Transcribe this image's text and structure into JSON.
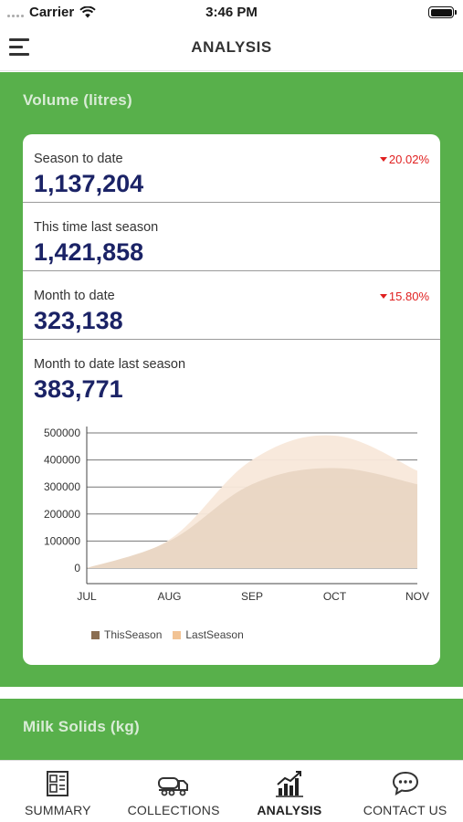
{
  "status_bar": {
    "carrier": "Carrier",
    "time": "3:46 PM"
  },
  "header": {
    "title": "ANALYSIS"
  },
  "volume": {
    "title": "Volume (litres)",
    "stats": [
      {
        "label": "Season to date",
        "value": "1,137,204",
        "change": "20.02%"
      },
      {
        "label": "This time last season",
        "value": "1,421,858",
        "change": ""
      },
      {
        "label": "Month to date",
        "value": "323,138",
        "change": "15.80%"
      },
      {
        "label": "Month to date last season",
        "value": "383,771",
        "change": ""
      }
    ]
  },
  "chart_data": {
    "type": "area",
    "categories": [
      "JUL",
      "AUG",
      "SEP",
      "OCT",
      "NOV"
    ],
    "x": [
      0,
      1,
      2,
      3,
      4
    ],
    "y_ticks": [
      0,
      100000,
      200000,
      300000,
      400000,
      500000
    ],
    "y_tick_labels": [
      "0",
      "100000",
      "200000",
      "300000",
      "400000",
      "500000"
    ],
    "ylim": [
      0,
      500000
    ],
    "grid": true,
    "legend": "bottom-left",
    "series": [
      {
        "name": "LastSeason",
        "color": "#f8e8da",
        "values": [
          0,
          105000,
          400000,
          490000,
          360000
        ]
      },
      {
        "name": "ThisSeason",
        "color": "#e9d6c3",
        "values": [
          0,
          100000,
          310000,
          370000,
          310000
        ]
      }
    ],
    "legend_entries": [
      {
        "name": "ThisSeason",
        "color": "#8b6e52"
      },
      {
        "name": "LastSeason",
        "color": "#f2c394"
      }
    ]
  },
  "milk_solids": {
    "title": "Milk Solids (kg)"
  },
  "tabs": [
    {
      "label": "SUMMARY",
      "icon": "summary-icon",
      "active": false
    },
    {
      "label": "COLLECTIONS",
      "icon": "tanker-truck-icon",
      "active": false
    },
    {
      "label": "ANALYSIS",
      "icon": "bar-chart-icon",
      "active": true
    },
    {
      "label": "CONTACT US",
      "icon": "chat-bubble-icon",
      "active": false
    }
  ],
  "colors": {
    "green": "#58b04b",
    "navy": "#1b2366",
    "red": "#e02020"
  }
}
